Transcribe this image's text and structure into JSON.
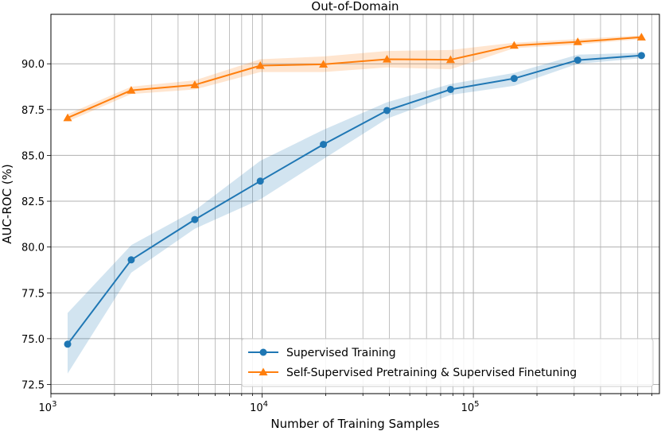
{
  "chart_data": {
    "type": "line",
    "title": "Out-of-Domain",
    "xlabel": "Number of Training Samples",
    "ylabel": "AUC-ROC (%)",
    "xscale": "log",
    "xlim": [
      1000,
      760000
    ],
    "ylim": [
      72.0,
      92.7
    ],
    "yticks": [
      72.5,
      75.0,
      77.5,
      80.0,
      82.5,
      85.0,
      87.5,
      90.0
    ],
    "ytick_labels": [
      "72.5",
      "75.0",
      "77.5",
      "80.0",
      "82.5",
      "85.0",
      "87.5",
      "90.0"
    ],
    "xticks": [
      {
        "value": 1000,
        "base": "10",
        "exp": "3"
      },
      {
        "value": 10000,
        "base": "10",
        "exp": "4"
      },
      {
        "value": 100000,
        "base": "10",
        "exp": "5"
      }
    ],
    "grid": true,
    "legend_position": "lower-right",
    "series": [
      {
        "name": "Supervised Training",
        "color": "#1f77b4",
        "marker": "circle",
        "x": [
          1200,
          2400,
          4800,
          9800,
          19500,
          39000,
          78000,
          156000,
          312000,
          625000
        ],
        "y": [
          74.7,
          79.3,
          81.5,
          83.6,
          85.6,
          87.45,
          88.6,
          89.2,
          90.2,
          90.45
        ],
        "lower": [
          73.1,
          78.6,
          81.0,
          82.6,
          84.8,
          87.0,
          88.3,
          88.8,
          90.0,
          90.3
        ],
        "upper": [
          76.4,
          80.1,
          82.0,
          84.7,
          86.4,
          87.9,
          88.9,
          89.5,
          90.5,
          90.6
        ]
      },
      {
        "name": "Self-Supervised Pretraining & Supervised Finetuning",
        "color": "#ff7f0e",
        "marker": "triangle",
        "x": [
          1200,
          2400,
          4800,
          9800,
          19500,
          39000,
          78000,
          156000,
          312000,
          625000
        ],
        "y": [
          87.05,
          88.55,
          88.85,
          89.9,
          89.97,
          90.25,
          90.22,
          91.0,
          91.2,
          91.45
        ],
        "lower": [
          86.85,
          88.35,
          88.6,
          89.55,
          89.55,
          89.8,
          89.7,
          90.85,
          91.05,
          91.35
        ],
        "upper": [
          87.25,
          88.75,
          89.1,
          90.25,
          90.4,
          90.7,
          90.75,
          91.15,
          91.35,
          91.55
        ]
      }
    ]
  }
}
